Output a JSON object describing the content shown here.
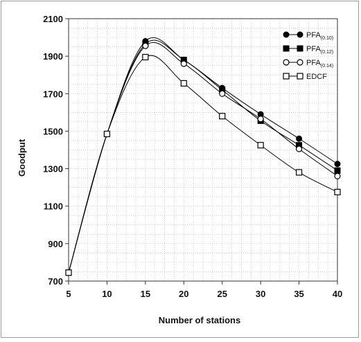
{
  "chart_data": {
    "type": "line",
    "x": [
      5,
      10,
      15,
      20,
      25,
      30,
      35,
      40
    ],
    "xlabel": "Number of stations",
    "ylabel": "Goodput",
    "xlim": [
      5,
      40
    ],
    "ylim": [
      700,
      2100
    ],
    "xticks": [
      "5",
      "10",
      "15",
      "20",
      "25",
      "30",
      "35",
      "40"
    ],
    "yticks": [
      "700",
      "900",
      "1100",
      "1300",
      "1500",
      "1700",
      "1900",
      "2100"
    ],
    "grid": true,
    "legend_position": "top-right",
    "series": [
      {
        "name": "PFA",
        "subscript": "(0.10)",
        "marker": "filled-circle",
        "color": "#000000",
        "values": [
          745,
          1485,
          1980,
          1880,
          1730,
          1590,
          1460,
          1325
        ]
      },
      {
        "name": "PFA",
        "subscript": "(0.12)",
        "marker": "filled-square",
        "color": "#000000",
        "values": [
          745,
          1485,
          1965,
          1880,
          1720,
          1555,
          1425,
          1290
        ]
      },
      {
        "name": "PFA",
        "subscript": "(0.14)",
        "marker": "open-circle",
        "color": "#000000",
        "values": [
          745,
          1485,
          1955,
          1860,
          1700,
          1565,
          1405,
          1260
        ]
      },
      {
        "name": "EDCF",
        "marker": "open-square",
        "color": "#000000",
        "values": [
          745,
          1485,
          1895,
          1755,
          1580,
          1425,
          1280,
          1175
        ]
      }
    ]
  }
}
